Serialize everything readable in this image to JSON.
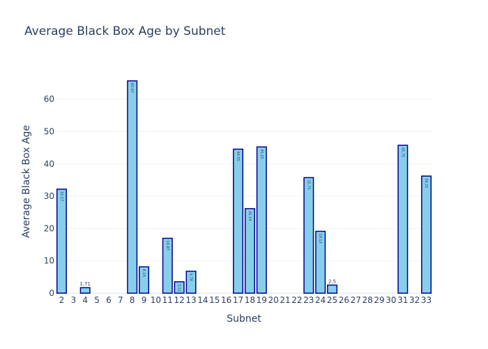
{
  "chart_data": {
    "type": "bar",
    "title": "Average Black Box Age by Subnet",
    "xlabel": "Subnet",
    "ylabel": "Average Black Box Age",
    "categories": [
      "2",
      "3",
      "4",
      "5",
      "6",
      "7",
      "8",
      "9",
      "10",
      "11",
      "12",
      "13",
      "14",
      "15",
      "16",
      "17",
      "18",
      "19",
      "20",
      "21",
      "22",
      "23",
      "24",
      "25",
      "26",
      "27",
      "28",
      "29",
      "30",
      "31",
      "32",
      "33"
    ],
    "values": [
      32.17,
      null,
      1.71,
      null,
      null,
      null,
      65.67,
      8.14,
      null,
      16.97,
      3.52,
      6.78,
      null,
      null,
      null,
      44.55,
      26.14,
      45.25,
      null,
      null,
      null,
      35.75,
      19.13,
      2.5,
      null,
      null,
      null,
      null,
      null,
      45.75,
      null,
      36.22
    ],
    "value_labels": [
      "32.17",
      "",
      "1.71",
      "",
      "",
      "",
      "65.67",
      "8.14",
      "",
      "16.97",
      "3.52",
      "6.78",
      "",
      "",
      "",
      "44.55",
      "26.14",
      "45.25",
      "",
      "",
      "",
      "35.75",
      "19.13",
      "2.5",
      "",
      "",
      "",
      "",
      "",
      "45.75",
      "",
      "36.22"
    ],
    "yticks": [
      0,
      10,
      20,
      30,
      40,
      50,
      60
    ],
    "ylim": [
      0,
      69.1
    ],
    "grid": true,
    "colors": {
      "bar_fill": "#87ceeb",
      "bar_outline": "#00008b",
      "text": "#2a3f5f",
      "grid": "#ebf0f8",
      "background": "#ffffff"
    }
  }
}
